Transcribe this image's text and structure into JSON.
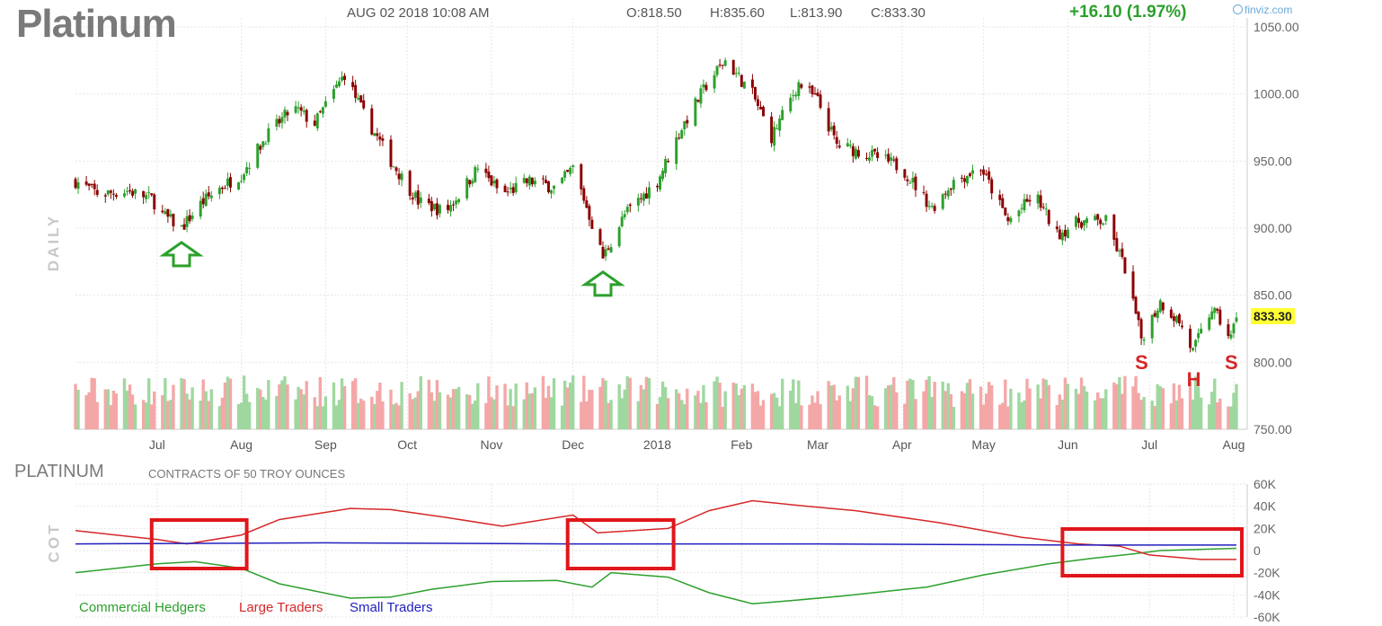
{
  "header": {
    "symbol": "Platinum",
    "datetime": "AUG 02 2018 10:08 AM",
    "open": "O:818.50",
    "high": "H:835.60",
    "low": "L:813.90",
    "close": "C:833.30",
    "change": "+16.10 (1.97%)",
    "brand": "finviz.com"
  },
  "price_panel": {
    "side_label": "DAILY",
    "last_price_tag": "833.30",
    "annotations": [
      {
        "label": "S",
        "date": "2018-06-28"
      },
      {
        "label": "H",
        "date": "2018-07-17"
      },
      {
        "label": "S",
        "date": "2018-07-31"
      }
    ],
    "arrows": [
      {
        "icon": "up-arrow-icon",
        "date": "2017-07-10"
      },
      {
        "icon": "up-arrow-icon",
        "date": "2017-12-12"
      }
    ]
  },
  "cot_panel": {
    "title": "PLATINUM",
    "description": "CONTRACTS OF 50 TROY OUNCES",
    "side_label": "COT",
    "legend": [
      {
        "name": "Commercial Hedgers",
        "color": "#2ca02c"
      },
      {
        "name": "Large Traders",
        "color": "#d62728"
      },
      {
        "name": "Small Traders",
        "color": "#1f1fbf"
      }
    ],
    "highlight_boxes": [
      {
        "from": "2017-07-01",
        "to": "2017-08-01"
      },
      {
        "from": "2017-12-01",
        "to": "2018-01-05"
      },
      {
        "from": "2018-06-01",
        "to": "2018-08-02"
      }
    ]
  },
  "colors": {
    "up": "#2ca02c",
    "down": "#8b0000",
    "vol_up": "#9fd89f",
    "vol_down": "#f4a7a7"
  },
  "chart_data": [
    {
      "type": "candlestick",
      "x_tick_labels": [
        "Jul",
        "Aug",
        "Sep",
        "Oct",
        "Nov",
        "Dec",
        "2018",
        "Feb",
        "Mar",
        "Apr",
        "May",
        "Jun",
        "Jul",
        "Aug"
      ],
      "y_ticks": [
        "1050.00",
        "1000.00",
        "950.00",
        "900.00",
        "850.00",
        "800.00",
        "750.00"
      ],
      "ylim": [
        750,
        1050
      ],
      "close_path": [
        {
          "date": "2017-06-01",
          "close": 935
        },
        {
          "date": "2017-06-10",
          "close": 925
        },
        {
          "date": "2017-06-20",
          "close": 928
        },
        {
          "date": "2017-06-29",
          "close": 922
        },
        {
          "date": "2017-07-03",
          "close": 910
        },
        {
          "date": "2017-07-10",
          "close": 900
        },
        {
          "date": "2017-07-17",
          "close": 918
        },
        {
          "date": "2017-07-24",
          "close": 930
        },
        {
          "date": "2017-08-01",
          "close": 940
        },
        {
          "date": "2017-08-10",
          "close": 968
        },
        {
          "date": "2017-08-20",
          "close": 990
        },
        {
          "date": "2017-08-28",
          "close": 978
        },
        {
          "date": "2017-09-05",
          "close": 1005
        },
        {
          "date": "2017-09-08",
          "close": 1015
        },
        {
          "date": "2017-09-15",
          "close": 985
        },
        {
          "date": "2017-09-25",
          "close": 950
        },
        {
          "date": "2017-10-05",
          "close": 920
        },
        {
          "date": "2017-10-15",
          "close": 912
        },
        {
          "date": "2017-10-20",
          "close": 925
        },
        {
          "date": "2017-10-27",
          "close": 945
        },
        {
          "date": "2017-11-05",
          "close": 925
        },
        {
          "date": "2017-11-15",
          "close": 935
        },
        {
          "date": "2017-11-25",
          "close": 930
        },
        {
          "date": "2017-12-01",
          "close": 945
        },
        {
          "date": "2017-12-05",
          "close": 922
        },
        {
          "date": "2017-12-12",
          "close": 878
        },
        {
          "date": "2017-12-20",
          "close": 910
        },
        {
          "date": "2018-01-01",
          "close": 935
        },
        {
          "date": "2018-01-10",
          "close": 975
        },
        {
          "date": "2018-01-20",
          "close": 1010
        },
        {
          "date": "2018-01-26",
          "close": 1025
        },
        {
          "date": "2018-02-05",
          "close": 1000
        },
        {
          "date": "2018-02-12",
          "close": 968
        },
        {
          "date": "2018-02-22",
          "close": 1008
        },
        {
          "date": "2018-03-01",
          "close": 995
        },
        {
          "date": "2018-03-08",
          "close": 962
        },
        {
          "date": "2018-03-20",
          "close": 955
        },
        {
          "date": "2018-04-01",
          "close": 945
        },
        {
          "date": "2018-04-12",
          "close": 915
        },
        {
          "date": "2018-04-20",
          "close": 935
        },
        {
          "date": "2018-04-30",
          "close": 945
        },
        {
          "date": "2018-05-10",
          "close": 905
        },
        {
          "date": "2018-05-20",
          "close": 925
        },
        {
          "date": "2018-05-28",
          "close": 895
        },
        {
          "date": "2018-06-05",
          "close": 905
        },
        {
          "date": "2018-06-15",
          "close": 905
        },
        {
          "date": "2018-06-22",
          "close": 870
        },
        {
          "date": "2018-06-28",
          "close": 818
        },
        {
          "date": "2018-07-05",
          "close": 845
        },
        {
          "date": "2018-07-12",
          "close": 830
        },
        {
          "date": "2018-07-17",
          "close": 808
        },
        {
          "date": "2018-07-24",
          "close": 840
        },
        {
          "date": "2018-07-31",
          "close": 818
        },
        {
          "date": "2018-08-02",
          "close": 833.3
        }
      ]
    },
    {
      "type": "line",
      "title": "PLATINUM",
      "x_tick_labels": [
        "Jul",
        "Aug",
        "Sep",
        "Oct",
        "Nov",
        "Dec",
        "2018",
        "Feb",
        "Mar",
        "Apr",
        "May",
        "Jun",
        "Jul",
        "Aug"
      ],
      "y_ticks": [
        "60K",
        "40K",
        "20K",
        "0",
        "-20K",
        "-40K",
        "-60K"
      ],
      "ylim": [
        -60000,
        60000
      ],
      "series": [
        {
          "name": "Commercial Hedgers",
          "points": [
            {
              "date": "2017-06-01",
              "v": -20000
            },
            {
              "date": "2017-07-01",
              "v": -12000
            },
            {
              "date": "2017-07-15",
              "v": -10000
            },
            {
              "date": "2017-08-01",
              "v": -16000
            },
            {
              "date": "2017-08-15",
              "v": -30000
            },
            {
              "date": "2017-09-10",
              "v": -43000
            },
            {
              "date": "2017-09-25",
              "v": -42000
            },
            {
              "date": "2017-10-10",
              "v": -35000
            },
            {
              "date": "2017-11-01",
              "v": -28000
            },
            {
              "date": "2017-11-25",
              "v": -27000
            },
            {
              "date": "2017-12-08",
              "v": -33000
            },
            {
              "date": "2017-12-15",
              "v": -20000
            },
            {
              "date": "2018-01-05",
              "v": -24000
            },
            {
              "date": "2018-01-20",
              "v": -38000
            },
            {
              "date": "2018-02-05",
              "v": -48000
            },
            {
              "date": "2018-02-20",
              "v": -45000
            },
            {
              "date": "2018-03-10",
              "v": -41000
            },
            {
              "date": "2018-04-10",
              "v": -33000
            },
            {
              "date": "2018-05-01",
              "v": -22000
            },
            {
              "date": "2018-05-25",
              "v": -12000
            },
            {
              "date": "2018-06-10",
              "v": -7000
            },
            {
              "date": "2018-06-25",
              "v": -3000
            },
            {
              "date": "2018-07-05",
              "v": 0
            },
            {
              "date": "2018-08-02",
              "v": 2000
            }
          ]
        },
        {
          "name": "Large Traders",
          "points": [
            {
              "date": "2017-06-01",
              "v": 18000
            },
            {
              "date": "2017-07-01",
              "v": 10000
            },
            {
              "date": "2017-07-12",
              "v": 6000
            },
            {
              "date": "2017-08-01",
              "v": 14000
            },
            {
              "date": "2017-08-15",
              "v": 28000
            },
            {
              "date": "2017-09-10",
              "v": 38000
            },
            {
              "date": "2017-09-25",
              "v": 37000
            },
            {
              "date": "2017-10-15",
              "v": 30000
            },
            {
              "date": "2017-11-05",
              "v": 22000
            },
            {
              "date": "2017-12-01",
              "v": 32000
            },
            {
              "date": "2017-12-10",
              "v": 16000
            },
            {
              "date": "2018-01-05",
              "v": 20000
            },
            {
              "date": "2018-01-20",
              "v": 36000
            },
            {
              "date": "2018-02-05",
              "v": 45000
            },
            {
              "date": "2018-02-25",
              "v": 40000
            },
            {
              "date": "2018-03-15",
              "v": 36000
            },
            {
              "date": "2018-04-15",
              "v": 25000
            },
            {
              "date": "2018-05-15",
              "v": 12000
            },
            {
              "date": "2018-06-05",
              "v": 6000
            },
            {
              "date": "2018-06-20",
              "v": 4000
            },
            {
              "date": "2018-07-01",
              "v": -4000
            },
            {
              "date": "2018-07-20",
              "v": -8000
            },
            {
              "date": "2018-08-02",
              "v": -8000
            }
          ]
        },
        {
          "name": "Small Traders",
          "points": [
            {
              "date": "2017-06-01",
              "v": 6000
            },
            {
              "date": "2017-09-01",
              "v": 7000
            },
            {
              "date": "2017-12-01",
              "v": 6000
            },
            {
              "date": "2018-03-01",
              "v": 6000
            },
            {
              "date": "2018-06-01",
              "v": 5000
            },
            {
              "date": "2018-08-02",
              "v": 5000
            }
          ]
        }
      ]
    }
  ]
}
